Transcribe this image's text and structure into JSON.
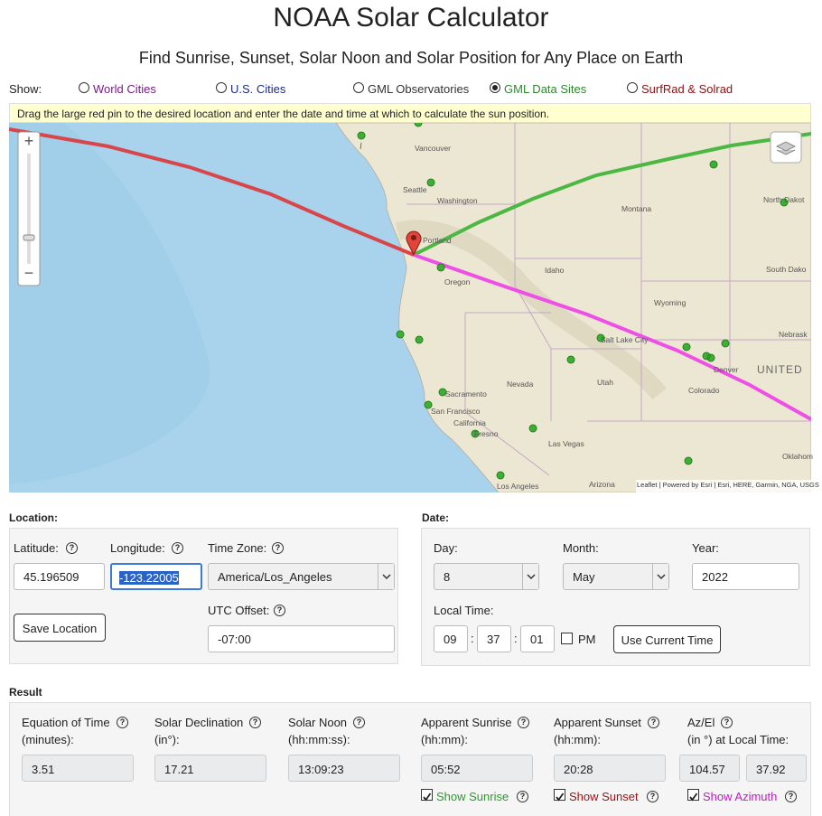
{
  "header": {
    "title": "NOAA Solar Calculator",
    "subtitle": "Find Sunrise, Sunset, Solar Noon and Solar Position for Any Place on Earth"
  },
  "help_icon": "?",
  "show": {
    "label": "Show:",
    "options": [
      {
        "label": "World Cities",
        "checked": false,
        "color": "#7a1a8a"
      },
      {
        "label": "U.S. Cities",
        "checked": false,
        "color": "#1c2a8c"
      },
      {
        "label": "GML Observatories",
        "checked": false,
        "color": "#333333"
      },
      {
        "label": "GML Data Sites",
        "checked": true,
        "color": "#2a8a2a"
      },
      {
        "label": "SurfRad & Solrad",
        "checked": false,
        "color": "#8b1010"
      }
    ]
  },
  "instructions": "Drag the large red pin to the desired location and enter the date and time at which to calculate the sun position.",
  "map": {
    "zoom_in": "+",
    "zoom_out": "−",
    "labels": [
      "Vancouver",
      "Seattle",
      "Washington",
      "Portland",
      "Oregon",
      "Idaho",
      "Montana",
      "Wyoming",
      "North Dakot",
      "South Dako",
      "Nebrask",
      "UNITED",
      "Salt Lake City",
      "Denver",
      "Colorado",
      "Nevada",
      "Utah",
      "Sacramento",
      "San Francisco",
      "California",
      "Fresno",
      "Las Vegas",
      "Oklahom",
      "Los Angeles",
      "Arizona"
    ],
    "attribution": "Leaflet | Powered by Esri | Esri, HERE, Garmin, NGA, USGS"
  },
  "location": {
    "heading": "Location:",
    "latitude": {
      "label": "Latitude:",
      "value": "45.196509"
    },
    "longitude": {
      "label": "Longitude:",
      "value": "-123.22005"
    },
    "time_zone": {
      "label": "Time Zone:",
      "value": "America/Los_Angeles"
    },
    "save_button": "Save Location",
    "utc_offset": {
      "label": "UTC Offset:",
      "value": "-07:00"
    }
  },
  "date": {
    "heading": "Date:",
    "day": {
      "label": "Day:",
      "value": "8"
    },
    "month": {
      "label": "Month:",
      "value": "May"
    },
    "year": {
      "label": "Year:",
      "value": "2022"
    },
    "local_time": {
      "label": "Local Time:",
      "hours": "09",
      "minutes": "37",
      "seconds": "01",
      "separator": ":",
      "pm_label": "PM",
      "pm_checked": false
    },
    "current_time_button": "Use Current Time"
  },
  "result": {
    "heading": "Result",
    "columns": [
      {
        "title": "Equation of Time",
        "unit": "(minutes):",
        "values": [
          "3.51"
        ]
      },
      {
        "title": "Solar Declination",
        "unit": "(in°):",
        "values": [
          "17.21"
        ]
      },
      {
        "title": "Solar Noon",
        "unit": "(hh:mm:ss):",
        "values": [
          "13:09:23"
        ]
      },
      {
        "title": "Apparent Sunrise",
        "unit": "(hh:mm):",
        "values": [
          "05:52"
        ]
      },
      {
        "title": "Apparent Sunset",
        "unit": "(hh:mm):",
        "values": [
          "20:28"
        ]
      },
      {
        "title": "Az/El",
        "unit": "(in °) at Local Time:",
        "values": [
          "104.57",
          "37.92"
        ]
      }
    ],
    "toggles": [
      {
        "label": "Show Sunrise",
        "checked": true,
        "color": "#2a9a2a"
      },
      {
        "label": "Show Sunset",
        "checked": true,
        "color": "#9b1010"
      },
      {
        "label": "Show Azimuth",
        "checked": true,
        "color": "#c21ac2"
      }
    ]
  }
}
